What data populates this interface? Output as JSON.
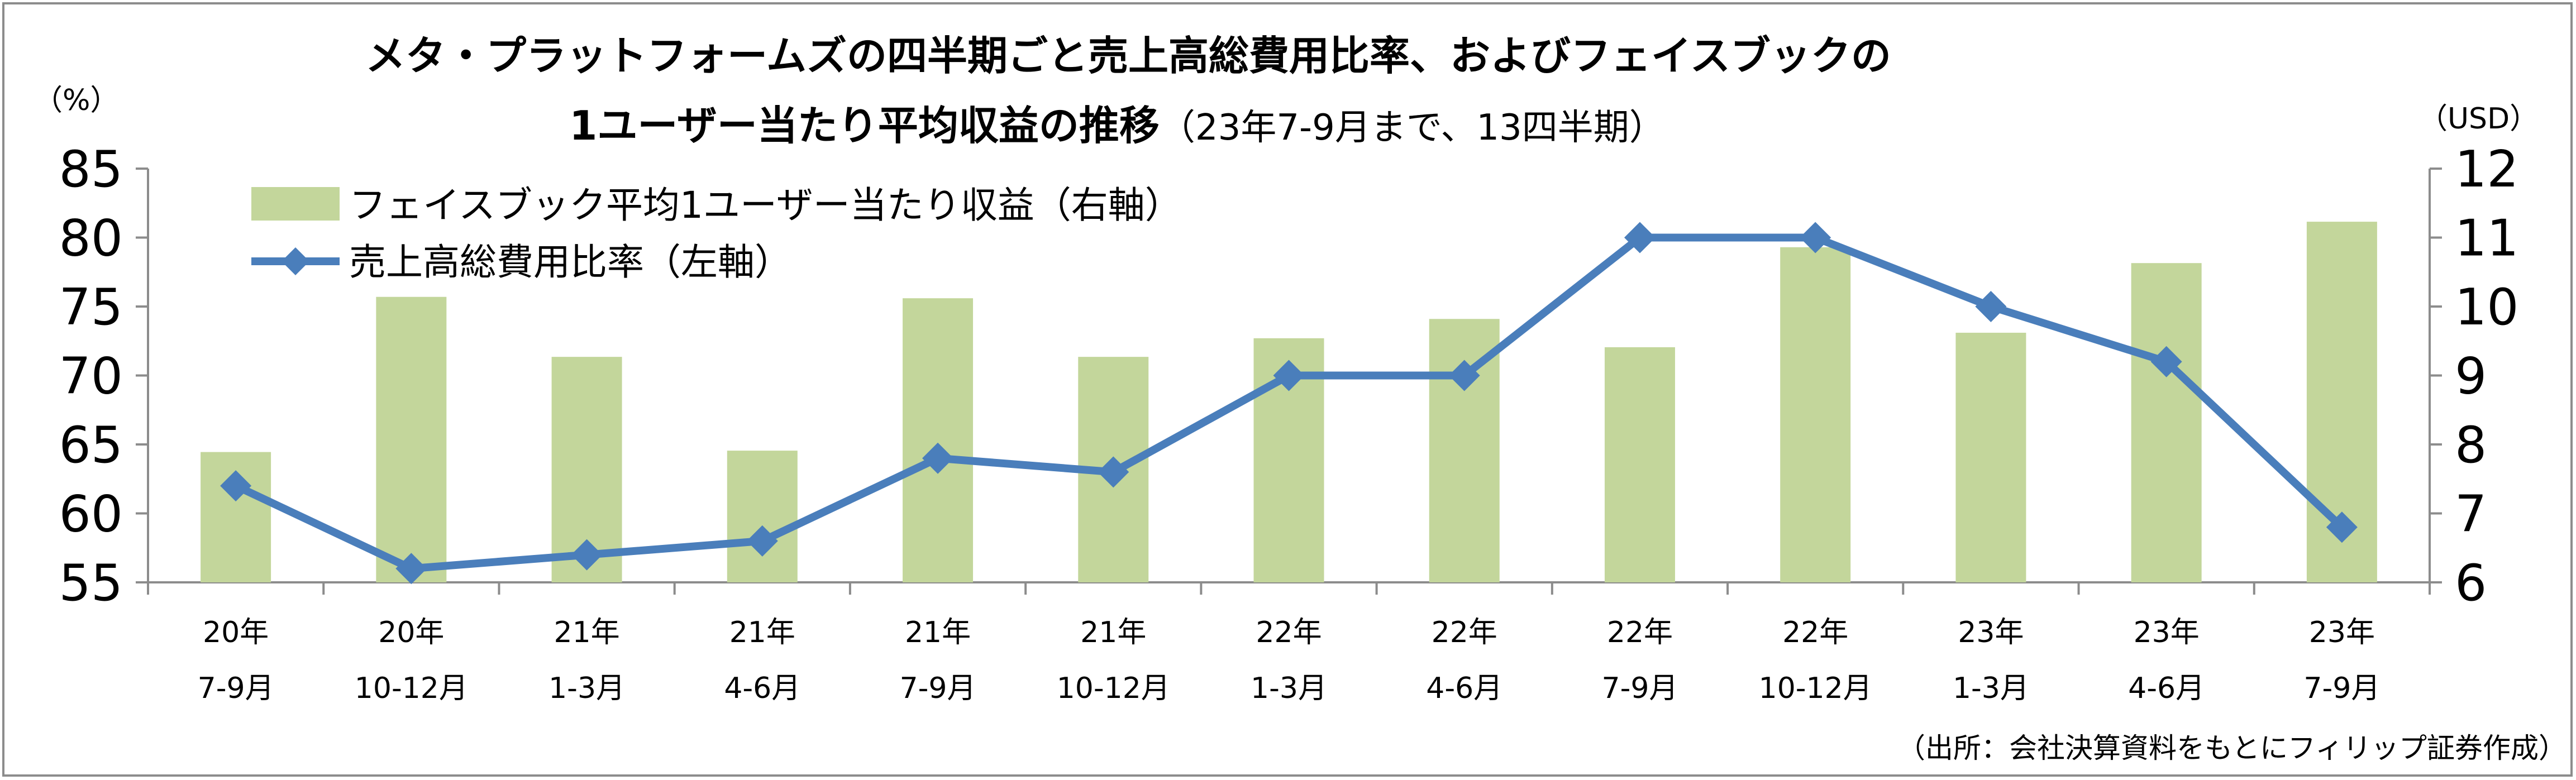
{
  "chart_data": {
    "type": "bar+line",
    "title_line1": "メタ・プラットフォームズの四半期ごと売上高総費用比率、およびフェイスブックの",
    "title_line2_bold": "1ユーザー当たり平均収益の推移",
    "title_line2_normal": "（23年7-9月まで、13四半期）",
    "left_unit": "（%）",
    "right_unit": "（USD）",
    "categories": [
      [
        "20年",
        "7-9月"
      ],
      [
        "20年",
        "10-12月"
      ],
      [
        "21年",
        "1-3月"
      ],
      [
        "21年",
        "4-6月"
      ],
      [
        "21年",
        "7-9月"
      ],
      [
        "21年",
        "10-12月"
      ],
      [
        "22年",
        "1-3月"
      ],
      [
        "22年",
        "4-6月"
      ],
      [
        "22年",
        "7-9月"
      ],
      [
        "22年",
        "10-12月"
      ],
      [
        "23年",
        "1-3月"
      ],
      [
        "23年",
        "4-6月"
      ],
      [
        "23年",
        "7-9月"
      ]
    ],
    "left_axis": {
      "min": 55,
      "max": 85,
      "step": 5,
      "ticks": [
        "55",
        "60",
        "65",
        "70",
        "75",
        "80",
        "85"
      ]
    },
    "right_axis": {
      "min": 6,
      "max": 12,
      "step": 1,
      "ticks": [
        "6",
        "7",
        "8",
        "9",
        "10",
        "11",
        "12"
      ]
    },
    "series": [
      {
        "name": "フェイスブック平均1ユーザー当たり収益（右軸）",
        "kind": "bar",
        "axis": "right",
        "color": "#c3d69b",
        "values": [
          7.89,
          10.14,
          9.27,
          7.91,
          10.12,
          9.27,
          9.54,
          9.82,
          9.41,
          10.86,
          9.62,
          10.63,
          11.23
        ]
      },
      {
        "name": "売上高総費用比率（左軸）",
        "kind": "line",
        "axis": "left",
        "color": "#4a7ebb",
        "values": [
          62,
          56,
          57,
          58,
          64,
          63,
          70,
          70,
          80,
          80,
          75,
          71,
          59
        ]
      }
    ],
    "grid": "none",
    "legend_position": "top-left"
  },
  "source": "（出所：会社決算資料をもとにフィリップ証券作成）"
}
